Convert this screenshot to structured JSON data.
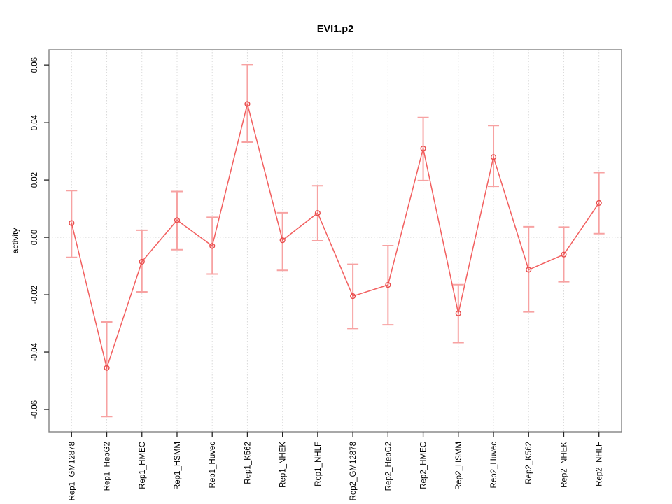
{
  "chart_data": {
    "type": "line",
    "title": "EVI1.p2",
    "xlabel": "",
    "ylabel": "activity",
    "legend_position": "none",
    "grid": "dotted vertical line at each category; dotted horizontal line at y=0",
    "ylim": [
      -0.0678,
      0.0654
    ],
    "yticks": [
      -0.06,
      -0.04,
      -0.02,
      0,
      0.02,
      0.04,
      0.06
    ],
    "ytick_labels": [
      "-0.06",
      "-0.04",
      "-0.02",
      "0.00",
      "0.02",
      "0.04",
      "0.06"
    ],
    "categories": [
      "Rep1_GM12878",
      "Rep1_HepG2",
      "Rep1_HMEC",
      "Rep1_HSMM",
      "Rep1_Huvec",
      "Rep1_K562",
      "Rep1_NHEK",
      "Rep1_NHLF",
      "Rep2_GM12878",
      "Rep2_HepG2",
      "Rep2_HMEC",
      "Rep2_HSMM",
      "Rep2_Huvec",
      "Rep2_K562",
      "Rep2_NHEK",
      "Rep2_NHLF"
    ],
    "series": [
      {
        "name": "activity",
        "marker": "open-circle",
        "values": [
          0.005,
          -0.0455,
          -0.0085,
          0.006,
          -0.003,
          0.0465,
          -0.001,
          0.0085,
          -0.0205,
          -0.0166,
          0.031,
          -0.0265,
          0.028,
          -0.0113,
          -0.006,
          0.012
        ],
        "error_low": [
          -0.007,
          -0.0625,
          -0.019,
          -0.0043,
          -0.0128,
          0.0332,
          -0.0115,
          -0.0012,
          -0.0318,
          -0.0305,
          0.0198,
          -0.0367,
          0.0178,
          -0.026,
          -0.0155,
          0.0013
        ],
        "error_high": [
          0.0163,
          -0.0295,
          0.0025,
          0.016,
          0.007,
          0.0602,
          0.0086,
          0.018,
          -0.0094,
          -0.0029,
          0.0418,
          -0.0165,
          0.039,
          0.0037,
          0.0036,
          0.0226
        ]
      }
    ],
    "colors": {
      "line": "#f25f5f",
      "errorbar": "#f7a2a2",
      "marker_stroke": "#e84c4c",
      "gridline": "#d9d9d9",
      "frame": "#828282",
      "tick": "#242424",
      "text": "#000000",
      "background": "#ffffff"
    }
  }
}
